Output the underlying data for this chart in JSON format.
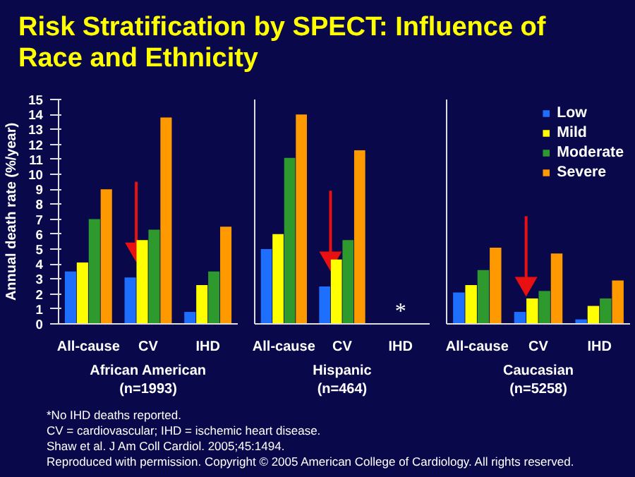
{
  "chart_data": [
    {
      "type": "bar",
      "title": "Risk Stratification by SPECT: Influence of Race and Ethnicity",
      "ylabel": "Annual death rate (%/year)",
      "xlabel": "African American\n(n=1993)",
      "categories": [
        "All-cause",
        "CV",
        "IHD"
      ],
      "ylim": [
        0,
        15
      ],
      "yticks": [
        0,
        1,
        2,
        3,
        4,
        5,
        6,
        7,
        8,
        9,
        10,
        11,
        12,
        13,
        14,
        15
      ],
      "grid": false,
      "series": [
        {
          "color": "#1f6fff",
          "values": [
            3.5,
            3.1,
            0.8
          ]
        },
        {
          "color": "#ffff00",
          "values": [
            4.1,
            5.6,
            2.6
          ]
        },
        {
          "color": "#2e9a2e",
          "values": [
            7.0,
            6.3,
            3.5
          ]
        },
        {
          "color": "#ff9900",
          "values": [
            9.0,
            13.8,
            6.5
          ]
        }
      ],
      "annotations": [
        "*No IHD deaths reported.",
        "CV = cardiovascular; IHD = ischemic heart disease.",
        "Shaw et al. J Am Coll Cardiol. 2005;45:1494.",
        "Reproduced with permission. Copyright © 2005 American College of Cardiology. All rights reserved."
      ]
    },
    {
      "type": "bar",
      "xlabel": "Hispanic\n(n=464)",
      "categories": [
        "All-cause",
        "CV",
        "IHD"
      ],
      "ylim": [
        0,
        15
      ],
      "tick_labels": "x",
      "grid": false,
      "series": [
        {
          "color": "#1f6fff",
          "values": [
            5.0,
            2.5,
            null
          ]
        },
        {
          "color": "#ffff00",
          "values": [
            6.0,
            4.3,
            null
          ]
        },
        {
          "color": "#2e9a2e",
          "values": [
            11.1,
            5.6,
            null
          ]
        },
        {
          "color": "#ff9900",
          "values": [
            14.0,
            11.6,
            null
          ]
        }
      ],
      "annotations": [
        "*"
      ]
    },
    {
      "type": "bar",
      "xlabel": "Caucasian\n(n=5258)",
      "categories": [
        "All-cause",
        "CV",
        "IHD"
      ],
      "ylim": [
        0,
        15
      ],
      "tick_labels": "x",
      "grid": false,
      "legend": "top right",
      "series": [
        {
          "name": "Low",
          "color": "#1f6fff",
          "values": [
            2.1,
            0.8,
            0.3
          ]
        },
        {
          "name": "Mild",
          "color": "#ffff00",
          "values": [
            2.6,
            1.7,
            1.2
          ]
        },
        {
          "name": "Moderate",
          "color": "#2e9a2e",
          "values": [
            3.6,
            2.2,
            1.7
          ]
        },
        {
          "name": "Severe",
          "color": "#ff9900",
          "values": [
            5.1,
            4.7,
            2.9
          ]
        }
      ]
    }
  ]
}
